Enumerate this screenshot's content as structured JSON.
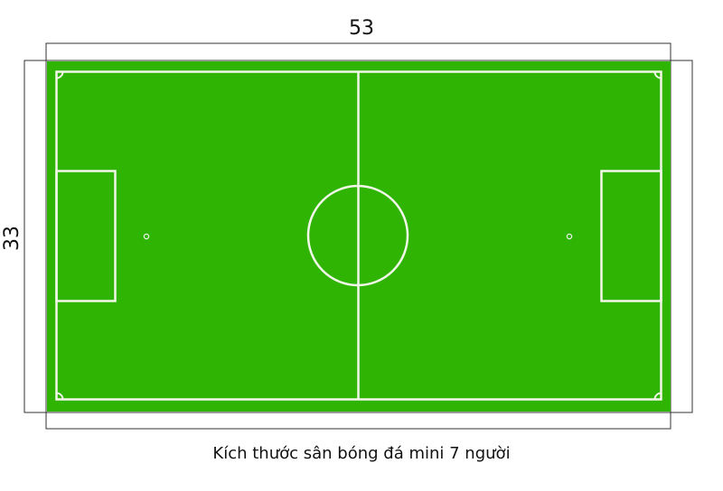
{
  "dimensions": {
    "length_label": "53",
    "width_label": "33"
  },
  "caption": "Kích thước sân bóng đá mini 7 người",
  "colors": {
    "field": "#30b404",
    "lines": "#f2f7ea",
    "dimension_lines": "#333333",
    "text": "#111111"
  }
}
